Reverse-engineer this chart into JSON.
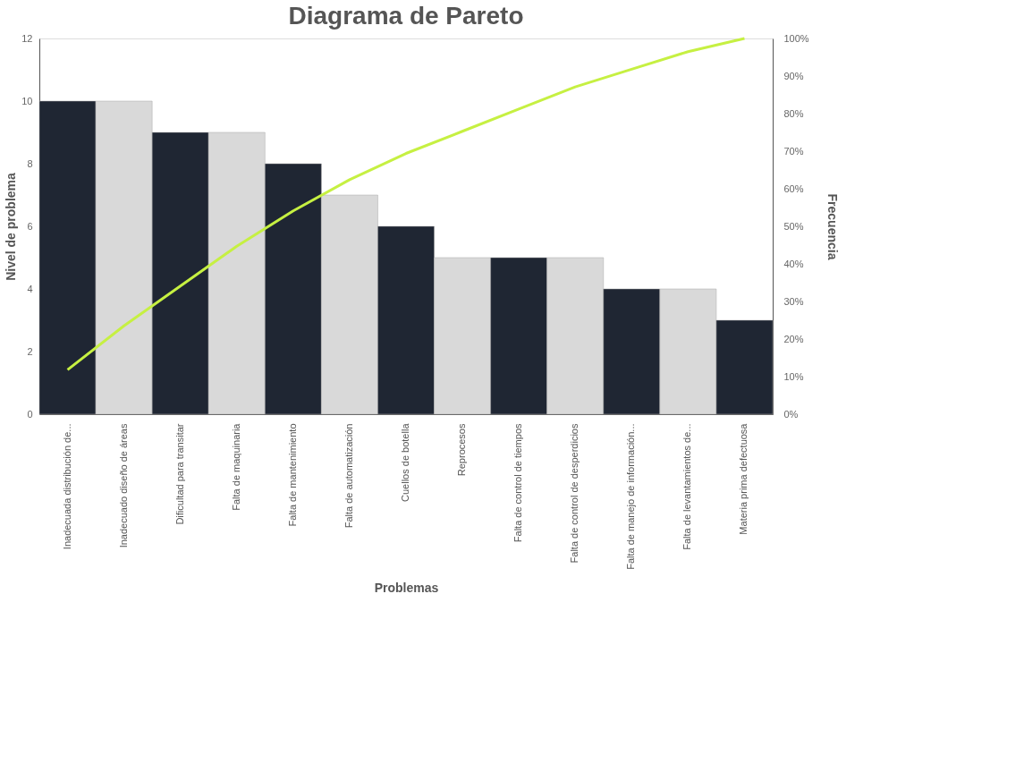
{
  "chart_data": {
    "type": "bar",
    "title": "Diagrama de Pareto",
    "xlabel": "Problemas",
    "ylabel": "Nivel de problema",
    "y2label": "Frecuencia",
    "categories": [
      "Inadecuada distribución de...",
      "Inadecuado diseño de áreas",
      "Dificultad para transitar",
      "Falta de maquinaria",
      "Falta de mantenimiento",
      "Falta de automatización",
      "Cuellos de botella",
      "Reprocesos",
      "Falta de control de tiempos",
      "Falta de control de desperdicios",
      "Falta de manejo de información...",
      "Falta de levantamientos de...",
      "Materia prima defectuosa"
    ],
    "series": [
      {
        "colors": [
          "#1f2633",
          "#d9d9d9",
          "#1f2633",
          "#d9d9d9",
          "#1f2633",
          "#d9d9d9",
          "#1f2633",
          "#d9d9d9",
          "#1f2633",
          "#d9d9d9",
          "#1f2633",
          "#d9d9d9",
          "#1f2633"
        ],
        "values": [
          10,
          10,
          9,
          9,
          8,
          7,
          6,
          5,
          5,
          5,
          4,
          4,
          3
        ]
      },
      {
        "type": "line",
        "axis": "y2",
        "color": "#c6f042",
        "values": [
          11.8,
          23.5,
          34.1,
          44.7,
          54.1,
          62.4,
          69.4,
          75.3,
          81.2,
          87.1,
          91.8,
          96.5,
          100
        ]
      }
    ],
    "ylim": [
      0,
      12
    ],
    "yticks": [
      0,
      2,
      4,
      6,
      8,
      10,
      12
    ],
    "y2lim": [
      0,
      100
    ],
    "y2ticks": [
      {
        "value": 0,
        "label": "0%"
      },
      {
        "value": 10,
        "label": "10%"
      },
      {
        "value": 20,
        "label": "20%"
      },
      {
        "value": 30,
        "label": "30%"
      },
      {
        "value": 40,
        "label": "40%"
      },
      {
        "value": 50,
        "label": "50%"
      },
      {
        "value": 60,
        "label": "60%"
      },
      {
        "value": 70,
        "label": "70%"
      },
      {
        "value": 80,
        "label": "80%"
      },
      {
        "value": 90,
        "label": "90%"
      },
      {
        "value": 100,
        "label": "100%"
      }
    ],
    "grid": false,
    "marker": "none",
    "line_style": "solid"
  }
}
